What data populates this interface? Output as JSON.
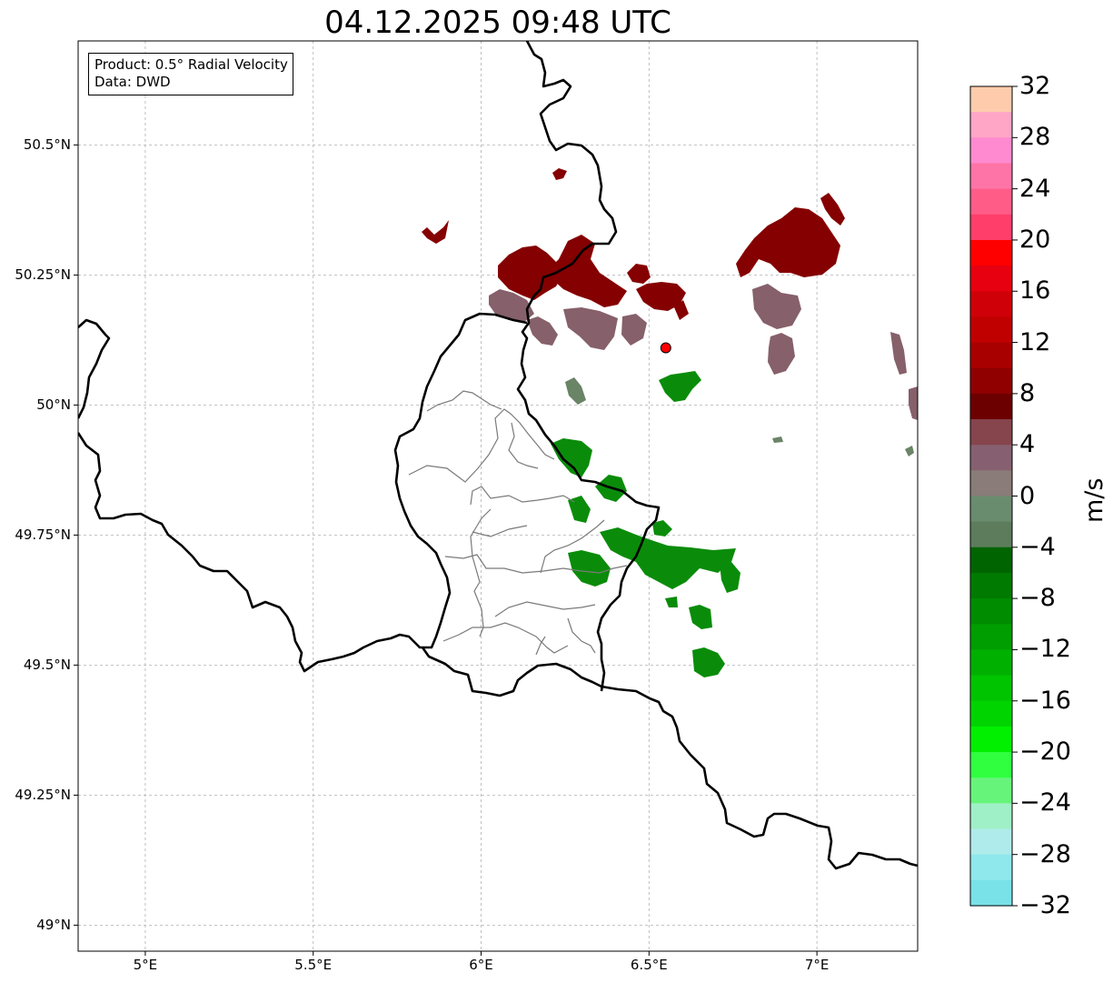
{
  "title": "04.12.2025 09:48 UTC",
  "info_box": {
    "product": "Product: 0.5° Radial Velocity",
    "source": "Data: DWD"
  },
  "axes": {
    "lat_labels": [
      "50.5°N",
      "50.25°N",
      "50°N",
      "49.75°N",
      "49.5°N",
      "49.25°N",
      "49°N"
    ],
    "lon_labels": [
      "5°E",
      "5.5°E",
      "6°E",
      "6.5°E",
      "7°E"
    ],
    "extent": {
      "lon_min": 4.8,
      "lon_max": 7.3,
      "lat_min": 48.95,
      "lat_max": 50.7
    },
    "gridlines": true
  },
  "radar_site": {
    "lon": 6.55,
    "lat": 50.11,
    "color": "#ff0000"
  },
  "colorbar": {
    "label": "m/s",
    "ticks": [
      "32",
      "28",
      "24",
      "20",
      "16",
      "12",
      "8",
      "4",
      "0",
      "−4",
      "−8",
      "−12",
      "−16",
      "−20",
      "−24",
      "−28",
      "−32"
    ],
    "range": [
      -32,
      32
    ],
    "step": 2,
    "colors_top_to_bottom": [
      "#ffcbad",
      "#ffa6c6",
      "#ff8ad0",
      "#ff74a6",
      "#ff5c88",
      "#ff3f6a",
      "#ff0000",
      "#e60010",
      "#d00008",
      "#c00000",
      "#a80000",
      "#900000",
      "#6c0000",
      "#86444c",
      "#866070",
      "#8a7c78",
      "#6a8c6e",
      "#5c7c5c",
      "#006400",
      "#007a00",
      "#008c00",
      "#009e00",
      "#00b000",
      "#00c400",
      "#00d400",
      "#00f000",
      "#30ff40",
      "#66f57a",
      "#9ff0c6",
      "#b0ebeb",
      "#8ee8ec",
      "#78e2e8"
    ]
  },
  "echo_colors": {
    "dark_red": "#8b0000",
    "mid_red": "#7a0a0a",
    "mauve": "#86606a",
    "grey_green": "#6a8466",
    "green": "#0a8c0a"
  }
}
